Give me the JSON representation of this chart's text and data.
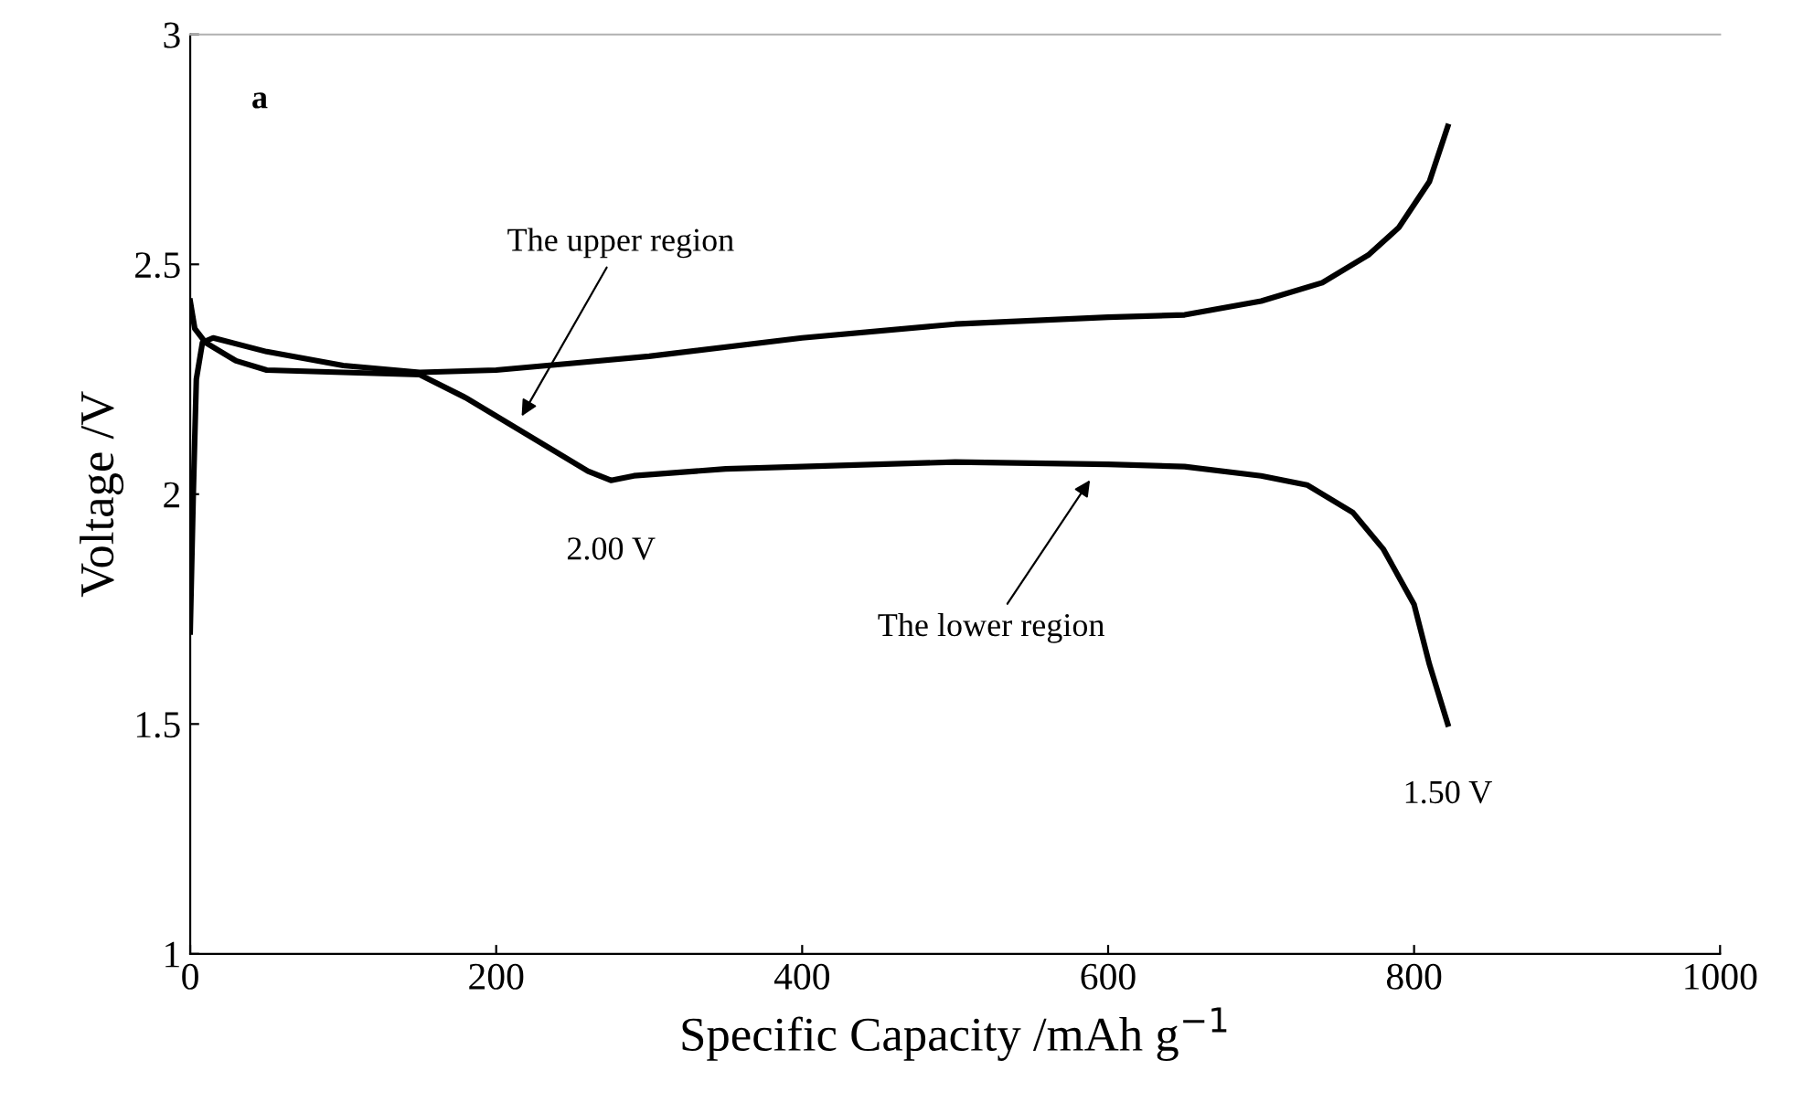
{
  "chart_data": {
    "type": "line",
    "xlabel": "Specific Capacity /mAh g$^{−1}$",
    "ylabel": "Voltage /V",
    "xlim": [
      0,
      1000
    ],
    "xticks": [
      0,
      200,
      400,
      600,
      800,
      1000
    ],
    "ylim": [
      1,
      3
    ],
    "yticks": [
      1,
      1.5,
      2,
      2.5,
      3
    ],
    "grid": false,
    "marker": "none",
    "line_style": "solid",
    "series": [
      {
        "color": "#000000",
        "x": [
          0,
          3,
          10,
          30,
          50,
          100,
          150,
          180,
          220,
          260,
          275,
          290,
          350,
          400,
          500,
          600,
          650,
          700,
          730,
          760,
          780,
          800,
          810,
          822
        ],
        "values": [
          2.42,
          2.36,
          2.33,
          2.29,
          2.27,
          2.265,
          2.26,
          2.21,
          2.13,
          2.05,
          2.03,
          2.04,
          2.055,
          2.06,
          2.07,
          2.065,
          2.06,
          2.04,
          2.02,
          1.96,
          1.88,
          1.76,
          1.63,
          1.5
        ]
      },
      {
        "color": "#000000",
        "x": [
          0,
          2,
          4,
          8,
          15,
          50,
          100,
          150,
          200,
          250,
          300,
          400,
          500,
          600,
          650,
          700,
          740,
          770,
          790,
          810,
          822
        ],
        "values": [
          1.7,
          2.0,
          2.25,
          2.33,
          2.34,
          2.31,
          2.28,
          2.265,
          2.27,
          2.285,
          2.3,
          2.34,
          2.37,
          2.385,
          2.39,
          2.42,
          2.46,
          2.52,
          2.58,
          2.68,
          2.8
        ]
      }
    ],
    "annotations": [
      "a",
      {
        "text": "The upper region",
        "x": 215,
        "y": 2.16
      },
      {
        "text": "2.00 V",
        "x": 275,
        "y": 2.03
      },
      {
        "text": "The lower region",
        "x": 590,
        "y": 2.04
      },
      {
        "text": "1.50 V",
        "x": 822,
        "y": 1.5
      }
    ]
  }
}
